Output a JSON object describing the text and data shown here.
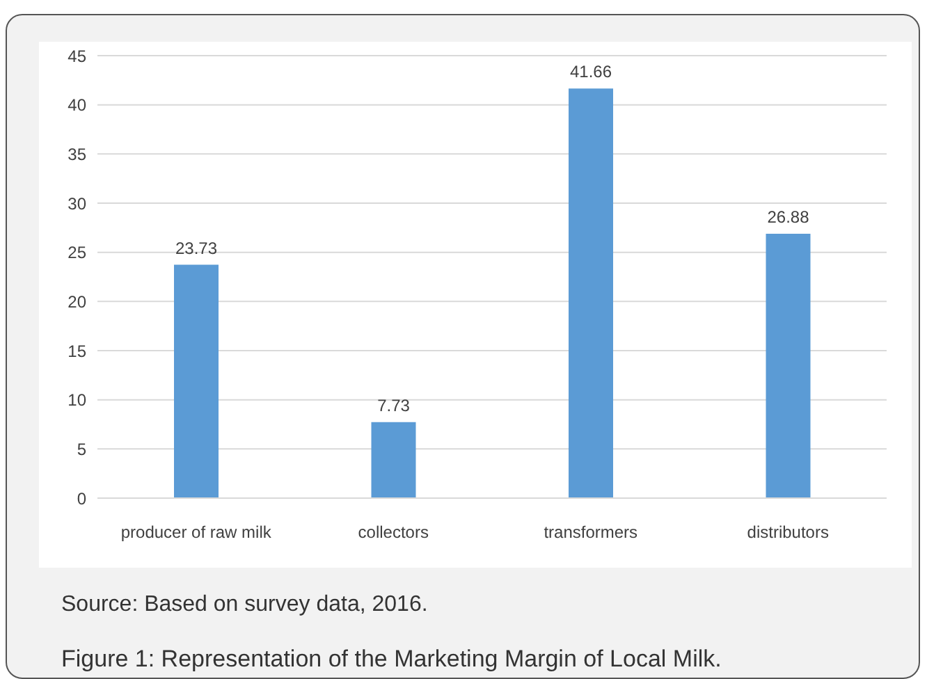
{
  "chart_data": {
    "type": "bar",
    "title": "Figure 1: Representation of the Marketing Margin of Local Milk.",
    "annotations": [
      "Source: Based on survey data, 2016."
    ],
    "categories": [
      "producer of raw milk",
      "collectors",
      "transformers",
      "distributors"
    ],
    "values": [
      23.73,
      7.73,
      41.66,
      26.88
    ],
    "color": "#5b9bd5",
    "ylim": [
      0,
      45
    ],
    "yticks": [
      0,
      5,
      10,
      15,
      20,
      25,
      30,
      35,
      40,
      45
    ],
    "grid": "y",
    "data_labels": true
  }
}
